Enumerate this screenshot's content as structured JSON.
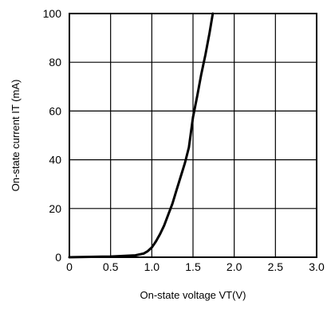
{
  "chart_data": {
    "type": "line",
    "xlabel": "On-state voltage VT(V)",
    "ylabel": "On-state current IT (mA)",
    "xlim": [
      0,
      3.0
    ],
    "ylim": [
      0,
      100
    ],
    "xticks": [
      "0",
      "0.5",
      "1.0",
      "1.5",
      "2.0",
      "2.5",
      "3.0"
    ],
    "yticks": [
      "0",
      "20",
      "40",
      "60",
      "80",
      "100"
    ],
    "grid": true,
    "series": [
      {
        "x": [
          0,
          0.5,
          0.8,
          0.9,
          0.95,
          1.0,
          1.05,
          1.1,
          1.15,
          1.2,
          1.25,
          1.3,
          1.35,
          1.4,
          1.45,
          1.5,
          1.55,
          1.6,
          1.65,
          1.7,
          1.74
        ],
        "y": [
          0,
          0.3,
          0.8,
          1.5,
          2.5,
          4,
          6.5,
          9.5,
          13,
          17.5,
          22,
          27.5,
          33,
          38.5,
          45,
          57.5,
          66,
          75,
          83,
          92,
          100
        ],
        "color": "#000000"
      }
    ]
  }
}
